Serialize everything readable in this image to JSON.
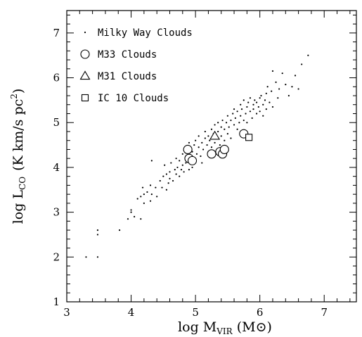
{
  "chart_data": {
    "type": "scatter",
    "xlabel": {
      "main": "log M",
      "sub": "VIR",
      "units": "(M⊙)"
    },
    "ylabel": {
      "main": "log L",
      "sub": "CO",
      "units": "(K km/s pc",
      "sup": "2",
      "close": ")"
    },
    "xlim": [
      3,
      7.5
    ],
    "ylim": [
      1,
      7.5
    ],
    "x_ticks": [
      3,
      4,
      5,
      6,
      7
    ],
    "y_ticks": [
      1,
      2,
      3,
      4,
      5,
      6,
      7
    ],
    "legend_position": "top-left",
    "series": [
      {
        "name": "Milky Way Clouds",
        "marker": "dot",
        "points": [
          [
            3.3,
            2.0
          ],
          [
            3.48,
            2.0
          ],
          [
            3.48,
            2.5
          ],
          [
            3.48,
            2.6
          ],
          [
            3.82,
            2.6
          ],
          [
            3.95,
            2.85
          ],
          [
            4.0,
            3.0
          ],
          [
            4.0,
            3.05
          ],
          [
            4.05,
            2.9
          ],
          [
            4.1,
            3.3
          ],
          [
            4.15,
            2.85
          ],
          [
            4.15,
            3.35
          ],
          [
            4.18,
            3.55
          ],
          [
            4.2,
            3.2
          ],
          [
            4.2,
            3.4
          ],
          [
            4.25,
            3.45
          ],
          [
            4.3,
            3.25
          ],
          [
            4.3,
            3.6
          ],
          [
            4.32,
            3.4
          ],
          [
            4.32,
            4.15
          ],
          [
            4.38,
            3.55
          ],
          [
            4.4,
            3.35
          ],
          [
            4.45,
            3.7
          ],
          [
            4.48,
            3.55
          ],
          [
            4.5,
            3.8
          ],
          [
            4.52,
            4.05
          ],
          [
            4.55,
            3.5
          ],
          [
            4.55,
            3.85
          ],
          [
            4.58,
            3.65
          ],
          [
            4.6,
            3.75
          ],
          [
            4.6,
            3.9
          ],
          [
            4.62,
            4.1
          ],
          [
            4.65,
            3.7
          ],
          [
            4.68,
            3.95
          ],
          [
            4.7,
            3.85
          ],
          [
            4.7,
            4.2
          ],
          [
            4.72,
            4.0
          ],
          [
            4.75,
            3.8
          ],
          [
            4.75,
            4.15
          ],
          [
            4.78,
            3.95
          ],
          [
            4.8,
            4.3
          ],
          [
            4.8,
            4.05
          ],
          [
            4.82,
            3.9
          ],
          [
            4.85,
            4.1
          ],
          [
            4.85,
            4.45
          ],
          [
            4.88,
            4.25
          ],
          [
            4.9,
            3.95
          ],
          [
            4.9,
            4.55
          ],
          [
            4.92,
            4.2
          ],
          [
            4.95,
            4.35
          ],
          [
            4.95,
            4.0
          ],
          [
            4.98,
            4.5
          ],
          [
            5.0,
            4.15
          ],
          [
            5.0,
            4.6
          ],
          [
            5.02,
            4.3
          ],
          [
            5.05,
            4.45
          ],
          [
            5.05,
            4.7
          ],
          [
            5.08,
            4.25
          ],
          [
            5.1,
            4.55
          ],
          [
            5.1,
            4.1
          ],
          [
            5.12,
            4.4
          ],
          [
            5.15,
            4.65
          ],
          [
            5.15,
            4.8
          ],
          [
            5.18,
            4.5
          ],
          [
            5.2,
            4.35
          ],
          [
            5.2,
            4.7
          ],
          [
            5.22,
            4.6
          ],
          [
            5.25,
            4.85
          ],
          [
            5.25,
            4.45
          ],
          [
            5.28,
            4.75
          ],
          [
            5.3,
            4.55
          ],
          [
            5.3,
            4.95
          ],
          [
            5.32,
            4.65
          ],
          [
            5.35,
            4.8
          ],
          [
            5.35,
            5.0
          ],
          [
            5.38,
            4.5
          ],
          [
            5.4,
            4.9
          ],
          [
            5.4,
            4.7
          ],
          [
            5.42,
            5.05
          ],
          [
            5.45,
            4.85
          ],
          [
            5.45,
            4.6
          ],
          [
            5.48,
            5.0
          ],
          [
            5.5,
            4.75
          ],
          [
            5.5,
            5.15
          ],
          [
            5.52,
            4.9
          ],
          [
            5.55,
            5.05
          ],
          [
            5.55,
            4.65
          ],
          [
            5.58,
            5.2
          ],
          [
            5.6,
            4.95
          ],
          [
            5.6,
            5.3
          ],
          [
            5.62,
            5.1
          ],
          [
            5.65,
            4.85
          ],
          [
            5.65,
            5.25
          ],
          [
            5.68,
            5.0
          ],
          [
            5.7,
            5.4
          ],
          [
            5.7,
            5.15
          ],
          [
            5.72,
            5.3
          ],
          [
            5.75,
            5.05
          ],
          [
            5.75,
            5.5
          ],
          [
            5.78,
            5.2
          ],
          [
            5.8,
            5.35
          ],
          [
            5.8,
            5.0
          ],
          [
            5.82,
            5.45
          ],
          [
            5.85,
            5.25
          ],
          [
            5.85,
            5.55
          ],
          [
            5.88,
            5.1
          ],
          [
            5.9,
            5.4
          ],
          [
            5.9,
            5.3
          ],
          [
            5.92,
            5.5
          ],
          [
            5.95,
            5.2
          ],
          [
            5.95,
            5.45
          ],
          [
            5.98,
            5.35
          ],
          [
            6.0,
            5.55
          ],
          [
            6.0,
            5.25
          ],
          [
            6.02,
            5.6
          ],
          [
            6.05,
            5.4
          ],
          [
            6.05,
            5.15
          ],
          [
            6.08,
            5.5
          ],
          [
            6.1,
            5.65
          ],
          [
            6.1,
            5.3
          ],
          [
            6.12,
            5.8
          ],
          [
            6.15,
            5.45
          ],
          [
            6.18,
            5.7
          ],
          [
            6.2,
            6.15
          ],
          [
            6.2,
            5.35
          ],
          [
            6.25,
            5.9
          ],
          [
            6.28,
            5.55
          ],
          [
            6.3,
            5.75
          ],
          [
            6.35,
            6.1
          ],
          [
            6.4,
            5.85
          ],
          [
            6.45,
            5.6
          ],
          [
            6.5,
            5.8
          ],
          [
            6.55,
            6.05
          ],
          [
            6.6,
            5.75
          ],
          [
            6.65,
            6.3
          ],
          [
            6.75,
            6.5
          ]
        ]
      },
      {
        "name": "M33 Clouds",
        "marker": "circle",
        "points": [
          [
            4.88,
            4.4
          ],
          [
            4.9,
            4.2
          ],
          [
            4.95,
            4.15
          ],
          [
            5.25,
            4.3
          ],
          [
            5.38,
            4.35
          ],
          [
            5.42,
            4.3
          ],
          [
            5.45,
            4.4
          ],
          [
            5.75,
            4.75
          ]
        ]
      },
      {
        "name": "M31 Clouds",
        "marker": "triangle",
        "points": [
          [
            5.3,
            4.7
          ]
        ]
      },
      {
        "name": "IC 10 Clouds",
        "marker": "square",
        "points": [
          [
            5.83,
            4.67
          ]
        ]
      }
    ]
  }
}
